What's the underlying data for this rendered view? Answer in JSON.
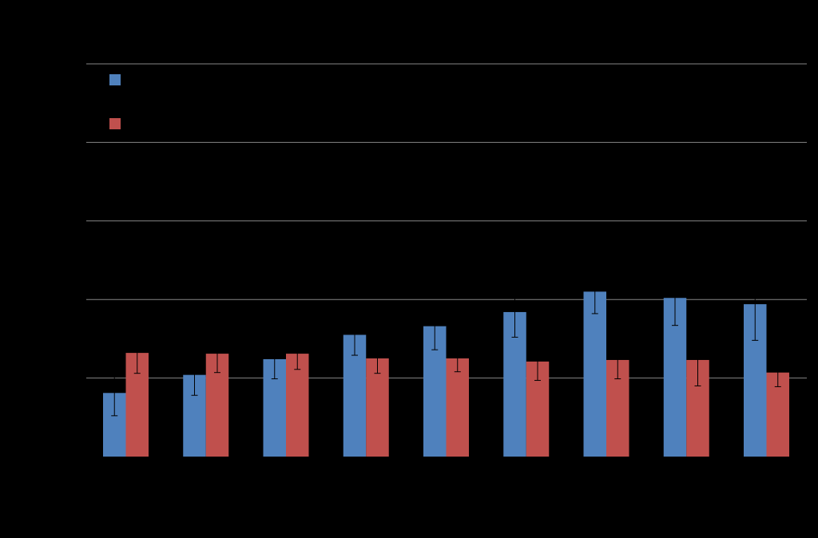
{
  "chart_data": {
    "type": "bar",
    "title": "",
    "xlabel": "",
    "ylabel": "",
    "categories": [
      "",
      "",
      "",
      "",
      "",
      "",
      "",
      "",
      ""
    ],
    "ylim": [
      0,
      5
    ],
    "grid": true,
    "legend_position": "top-left",
    "series": [
      {
        "color": "#4F81BD",
        "values": [
          0.81,
          1.04,
          1.24,
          1.55,
          1.66,
          1.84,
          2.1,
          2.02,
          1.94
        ],
        "errors": [
          0.29,
          0.26,
          0.25,
          0.26,
          0.3,
          0.32,
          0.28,
          0.35,
          0.46
        ]
      },
      {
        "color": "#C0504D",
        "values": [
          1.32,
          1.31,
          1.31,
          1.25,
          1.25,
          1.21,
          1.23,
          1.23,
          1.07
        ],
        "errors": [
          0.26,
          0.24,
          0.2,
          0.19,
          0.17,
          0.24,
          0.24,
          0.33,
          0.18
        ]
      }
    ]
  },
  "colors": {
    "background": "#000000",
    "gridline": "#868686",
    "error_bar": "#000000"
  }
}
